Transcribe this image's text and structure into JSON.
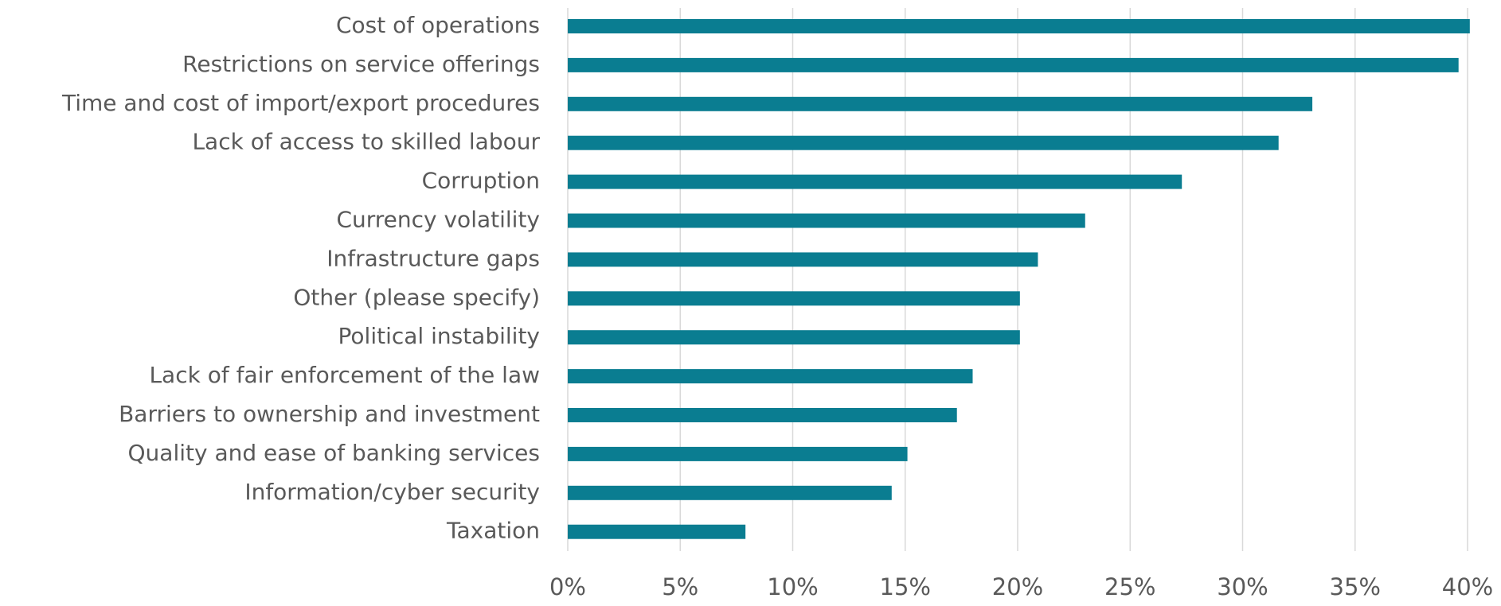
{
  "chart_data": {
    "type": "bar",
    "orientation": "horizontal",
    "title": "",
    "xlabel": "",
    "ylabel": "",
    "categories": [
      "Cost of operations",
      "Restrictions on service offerings",
      "Time and cost of import/export procedures",
      "Lack of access to skilled labour",
      "Corruption",
      "Currency volatility",
      "Infrastructure gaps",
      "Other (please specify)",
      "Political instability",
      "Lack of fair enforcement of the law",
      "Barriers to ownership and investment",
      "Quality and ease of banking services",
      "Information/cyber security",
      "Taxation"
    ],
    "values": [
      40.1,
      39.6,
      33.1,
      31.6,
      27.3,
      23.0,
      20.9,
      20.1,
      20.1,
      18.0,
      17.3,
      15.1,
      14.4,
      7.9
    ],
    "xlim": [
      0,
      40
    ],
    "xticks": [
      "0%",
      "5%",
      "10%",
      "15%",
      "20%",
      "25%",
      "30%",
      "35%",
      "40%"
    ],
    "grid": true,
    "legend": "none",
    "bar_color": "#0a7d91"
  }
}
